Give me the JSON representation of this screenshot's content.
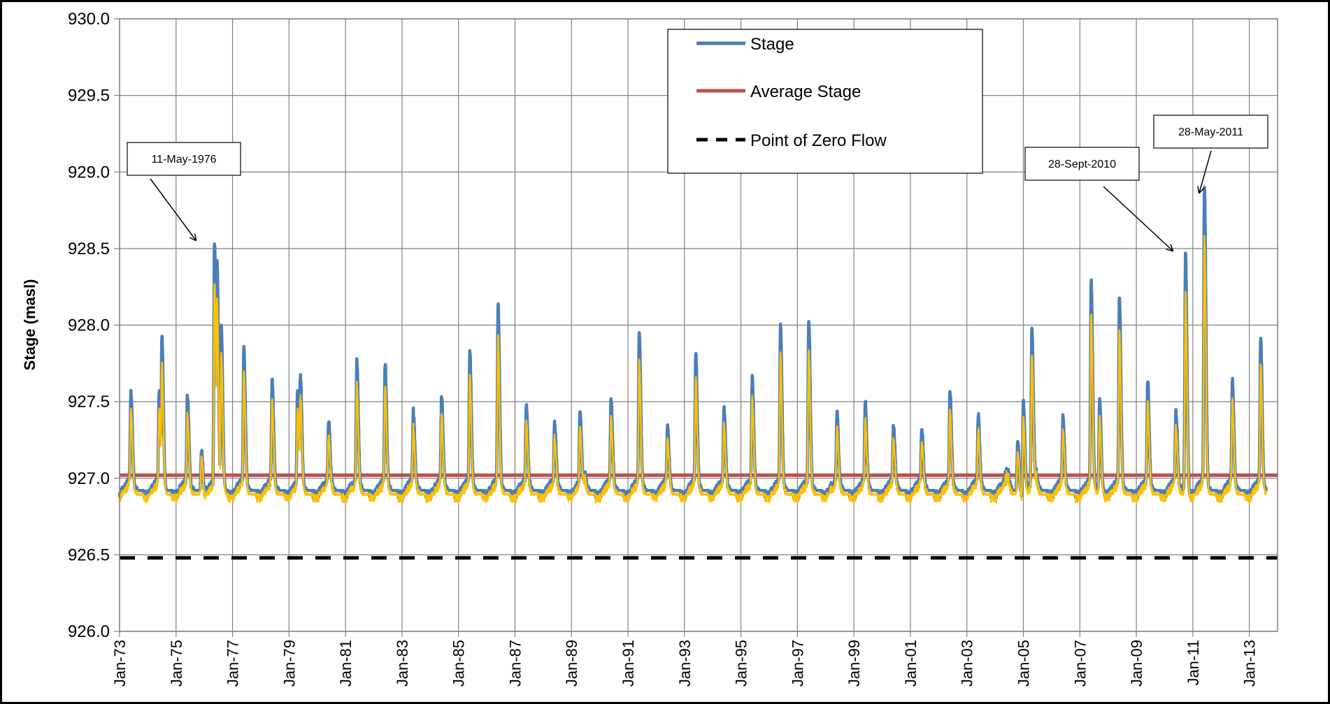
{
  "chart_data": {
    "type": "line",
    "title": "",
    "xlabel": "",
    "ylabel": "Stage (masl)",
    "ylim": [
      926.0,
      930.0
    ],
    "yticks": [
      "926.0",
      "926.5",
      "927.0",
      "927.5",
      "928.0",
      "928.5",
      "929.0",
      "929.5",
      "930.0"
    ],
    "xlim": [
      1973.0,
      2014.0
    ],
    "xticks": [
      "Jan-73",
      "Jan-75",
      "Jan-77",
      "Jan-79",
      "Jan-81",
      "Jan-83",
      "Jan-85",
      "Jan-87",
      "Jan-89",
      "Jan-91",
      "Jan-93",
      "Jan-95",
      "Jan-97",
      "Jan-99",
      "Jan-01",
      "Jan-03",
      "Jan-05",
      "Jan-07",
      "Jan-09",
      "Jan-11",
      "Jan-13"
    ],
    "grid": true,
    "legend_position": "top-center",
    "series": [
      {
        "name": "Stage",
        "color": "#4a7ebb",
        "style": "solid",
        "peaks": [
          [
            1973.4,
            927.5
          ],
          [
            1974.4,
            927.51
          ],
          [
            1974.5,
            927.9
          ],
          [
            1975.4,
            927.48
          ],
          [
            1975.9,
            927.21
          ],
          [
            1976.36,
            928.5
          ],
          [
            1976.45,
            928.36
          ],
          [
            1976.6,
            928.0
          ],
          [
            1977.4,
            927.77
          ],
          [
            1978.4,
            927.57
          ],
          [
            1979.3,
            927.57
          ],
          [
            1979.4,
            927.59
          ],
          [
            1980.4,
            927.31
          ],
          [
            1981.4,
            927.69
          ],
          [
            1982.4,
            927.69
          ],
          [
            1983.4,
            927.37
          ],
          [
            1984.4,
            927.46
          ],
          [
            1985.4,
            927.77
          ],
          [
            1986.4,
            928.07
          ],
          [
            1987.4,
            927.41
          ],
          [
            1988.4,
            927.29
          ],
          [
            1989.3,
            927.43
          ],
          [
            1990.4,
            927.45
          ],
          [
            1991.4,
            927.88
          ],
          [
            1992.4,
            927.27
          ],
          [
            1993.4,
            927.75
          ],
          [
            1994.4,
            927.38
          ],
          [
            1995.4,
            927.59
          ],
          [
            1996.4,
            927.92
          ],
          [
            1997.4,
            927.98
          ],
          [
            1998.4,
            927.36
          ],
          [
            1999.4,
            927.43
          ],
          [
            2000.4,
            927.28
          ],
          [
            2001.4,
            927.27
          ],
          [
            2002.4,
            927.5
          ],
          [
            2003.4,
            927.35
          ],
          [
            2004.8,
            927.24
          ],
          [
            2005.0,
            927.52
          ],
          [
            2005.3,
            927.98
          ],
          [
            2006.4,
            927.34
          ],
          [
            2007.4,
            928.22
          ],
          [
            2007.7,
            927.52
          ],
          [
            2008.4,
            928.12
          ],
          [
            2009.4,
            927.57
          ],
          [
            2010.4,
            927.39
          ],
          [
            2010.74,
            928.47
          ],
          [
            2011.41,
            928.84
          ],
          [
            2012.4,
            927.57
          ],
          [
            2013.4,
            927.84
          ]
        ]
      },
      {
        "name": "Average Stage",
        "color": "#c0504d",
        "style": "solid",
        "value": 927.02
      },
      {
        "name": "Point of Zero Flow",
        "color": "#000000",
        "style": "dashed",
        "value": 926.48
      },
      {
        "color": "#ffc000",
        "style": "solid"
      }
    ],
    "annotations": [
      {
        "text": "11-May-1976",
        "x": 1976.36,
        "y": 928.5
      },
      {
        "text": "28-Sept-2010",
        "x": 2010.74,
        "y": 928.47
      },
      {
        "text": "28-May-2011",
        "x": 2011.41,
        "y": 928.84
      }
    ]
  }
}
